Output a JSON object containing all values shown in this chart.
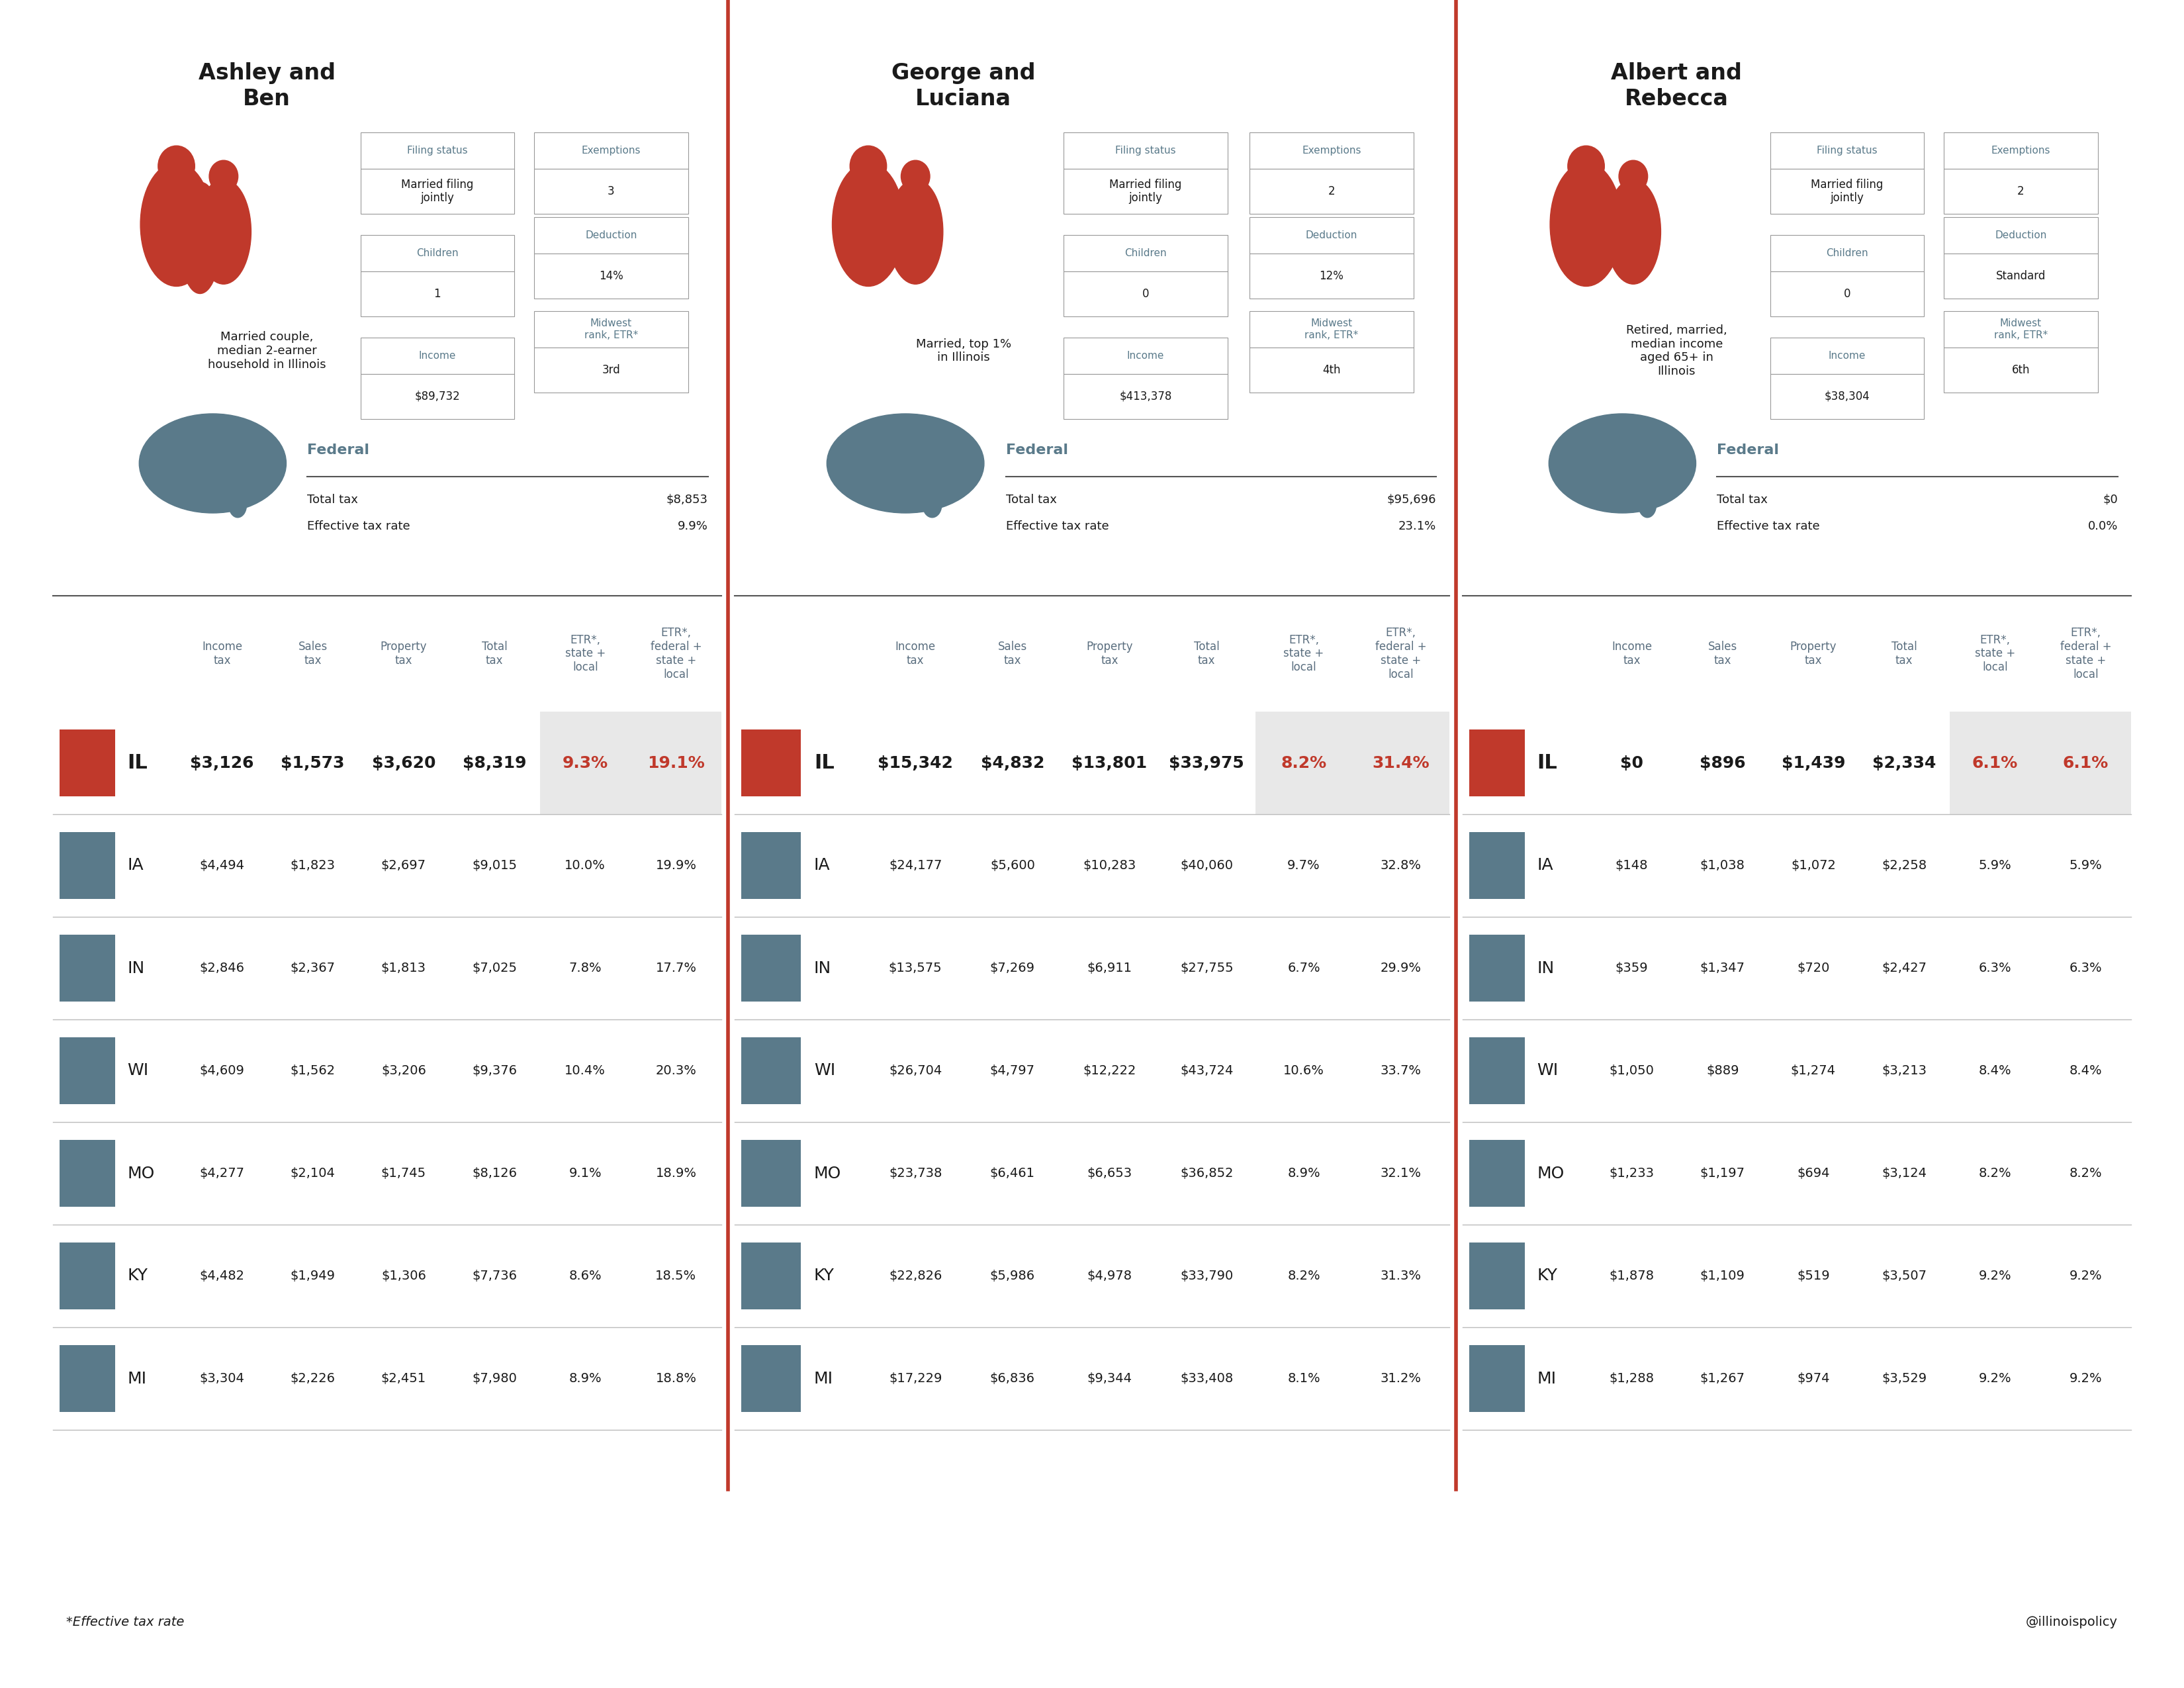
{
  "bg_color": "#ffffff",
  "header_color": "#5a7a8a",
  "red_color": "#c0392b",
  "dark_color": "#1a1a1a",
  "gray_color": "#5a6e7f",
  "light_bg": "#eeeeee",
  "families": [
    {
      "name": "Ashley and\nBen",
      "description": "Married couple,\nmedian 2-earner\nhousehold in Illinois",
      "filing_status": "Married filing\njointly",
      "exemptions": "3",
      "children": "1",
      "deduction": "14%",
      "income": "$89,732",
      "midwest_rank": "3rd",
      "federal_total_tax": "$8,853",
      "federal_etr": "9.9%"
    },
    {
      "name": "George and\nLuciana",
      "description": "Married, top 1%\nin Illinois",
      "filing_status": "Married filing\njointly",
      "exemptions": "2",
      "children": "0",
      "deduction": "12%",
      "income": "$413,378",
      "midwest_rank": "4th",
      "federal_total_tax": "$95,696",
      "federal_etr": "23.1%"
    },
    {
      "name": "Albert and\nRebecca",
      "description": "Retired, married,\nmedian income\naged 65+ in\nIllinois",
      "filing_status": "Married filing\njointly",
      "exemptions": "2",
      "children": "0",
      "deduction": "Standard",
      "income": "$38,304",
      "midwest_rank": "6th",
      "federal_total_tax": "$0",
      "federal_etr": "0.0%"
    }
  ],
  "col_headers": [
    "Income\ntax",
    "Sales\ntax",
    "Property\ntax",
    "Total\ntax",
    "ETR*,\nstate +\nlocal",
    "ETR*,\nfederal +\nstate +\nlocal"
  ],
  "table_data": [
    {
      "rows": [
        {
          "state": "IL",
          "income_tax": "$3,126",
          "sales_tax": "$1,573",
          "property_tax": "$3,620",
          "total_tax": "$8,319",
          "etr_sl": "9.3%",
          "etr_fsl": "19.1%",
          "il": true
        },
        {
          "state": "IA",
          "income_tax": "$4,494",
          "sales_tax": "$1,823",
          "property_tax": "$2,697",
          "total_tax": "$9,015",
          "etr_sl": "10.0%",
          "etr_fsl": "19.9%",
          "il": false
        },
        {
          "state": "IN",
          "income_tax": "$2,846",
          "sales_tax": "$2,367",
          "property_tax": "$1,813",
          "total_tax": "$7,025",
          "etr_sl": "7.8%",
          "etr_fsl": "17.7%",
          "il": false
        },
        {
          "state": "WI",
          "income_tax": "$4,609",
          "sales_tax": "$1,562",
          "property_tax": "$3,206",
          "total_tax": "$9,376",
          "etr_sl": "10.4%",
          "etr_fsl": "20.3%",
          "il": false
        },
        {
          "state": "MO",
          "income_tax": "$4,277",
          "sales_tax": "$2,104",
          "property_tax": "$1,745",
          "total_tax": "$8,126",
          "etr_sl": "9.1%",
          "etr_fsl": "18.9%",
          "il": false
        },
        {
          "state": "KY",
          "income_tax": "$4,482",
          "sales_tax": "$1,949",
          "property_tax": "$1,306",
          "total_tax": "$7,736",
          "etr_sl": "8.6%",
          "etr_fsl": "18.5%",
          "il": false
        },
        {
          "state": "MI",
          "income_tax": "$3,304",
          "sales_tax": "$2,226",
          "property_tax": "$2,451",
          "total_tax": "$7,980",
          "etr_sl": "8.9%",
          "etr_fsl": "18.8%",
          "il": false
        }
      ]
    },
    {
      "rows": [
        {
          "state": "IL",
          "income_tax": "$15,342",
          "sales_tax": "$4,832",
          "property_tax": "$13,801",
          "total_tax": "$33,975",
          "etr_sl": "8.2%",
          "etr_fsl": "31.4%",
          "il": true
        },
        {
          "state": "IA",
          "income_tax": "$24,177",
          "sales_tax": "$5,600",
          "property_tax": "$10,283",
          "total_tax": "$40,060",
          "etr_sl": "9.7%",
          "etr_fsl": "32.8%",
          "il": false
        },
        {
          "state": "IN",
          "income_tax": "$13,575",
          "sales_tax": "$7,269",
          "property_tax": "$6,911",
          "total_tax": "$27,755",
          "etr_sl": "6.7%",
          "etr_fsl": "29.9%",
          "il": false
        },
        {
          "state": "WI",
          "income_tax": "$26,704",
          "sales_tax": "$4,797",
          "property_tax": "$12,222",
          "total_tax": "$43,724",
          "etr_sl": "10.6%",
          "etr_fsl": "33.7%",
          "il": false
        },
        {
          "state": "MO",
          "income_tax": "$23,738",
          "sales_tax": "$6,461",
          "property_tax": "$6,653",
          "total_tax": "$36,852",
          "etr_sl": "8.9%",
          "etr_fsl": "32.1%",
          "il": false
        },
        {
          "state": "KY",
          "income_tax": "$22,826",
          "sales_tax": "$5,986",
          "property_tax": "$4,978",
          "total_tax": "$33,790",
          "etr_sl": "8.2%",
          "etr_fsl": "31.3%",
          "il": false
        },
        {
          "state": "MI",
          "income_tax": "$17,229",
          "sales_tax": "$6,836",
          "property_tax": "$9,344",
          "total_tax": "$33,408",
          "etr_sl": "8.1%",
          "etr_fsl": "31.2%",
          "il": false
        }
      ]
    },
    {
      "rows": [
        {
          "state": "IL",
          "income_tax": "$0",
          "sales_tax": "$896",
          "property_tax": "$1,439",
          "total_tax": "$2,334",
          "etr_sl": "6.1%",
          "etr_fsl": "6.1%",
          "il": true
        },
        {
          "state": "IA",
          "income_tax": "$148",
          "sales_tax": "$1,038",
          "property_tax": "$1,072",
          "total_tax": "$2,258",
          "etr_sl": "5.9%",
          "etr_fsl": "5.9%",
          "il": false
        },
        {
          "state": "IN",
          "income_tax": "$359",
          "sales_tax": "$1,347",
          "property_tax": "$720",
          "total_tax": "$2,427",
          "etr_sl": "6.3%",
          "etr_fsl": "6.3%",
          "il": false
        },
        {
          "state": "WI",
          "income_tax": "$1,050",
          "sales_tax": "$889",
          "property_tax": "$1,274",
          "total_tax": "$3,213",
          "etr_sl": "8.4%",
          "etr_fsl": "8.4%",
          "il": false
        },
        {
          "state": "MO",
          "income_tax": "$1,233",
          "sales_tax": "$1,197",
          "property_tax": "$694",
          "total_tax": "$3,124",
          "etr_sl": "8.2%",
          "etr_fsl": "8.2%",
          "il": false
        },
        {
          "state": "KY",
          "income_tax": "$1,878",
          "sales_tax": "$1,109",
          "property_tax": "$519",
          "total_tax": "$3,507",
          "etr_sl": "9.2%",
          "etr_fsl": "9.2%",
          "il": false
        },
        {
          "state": "MI",
          "income_tax": "$1,288",
          "sales_tax": "$1,267",
          "property_tax": "$974",
          "total_tax": "$3,529",
          "etr_sl": "9.2%",
          "etr_fsl": "9.2%",
          "il": false
        }
      ]
    }
  ],
  "footer_note": "*Effective tax rate",
  "footer_right": "@illinoispolicy"
}
